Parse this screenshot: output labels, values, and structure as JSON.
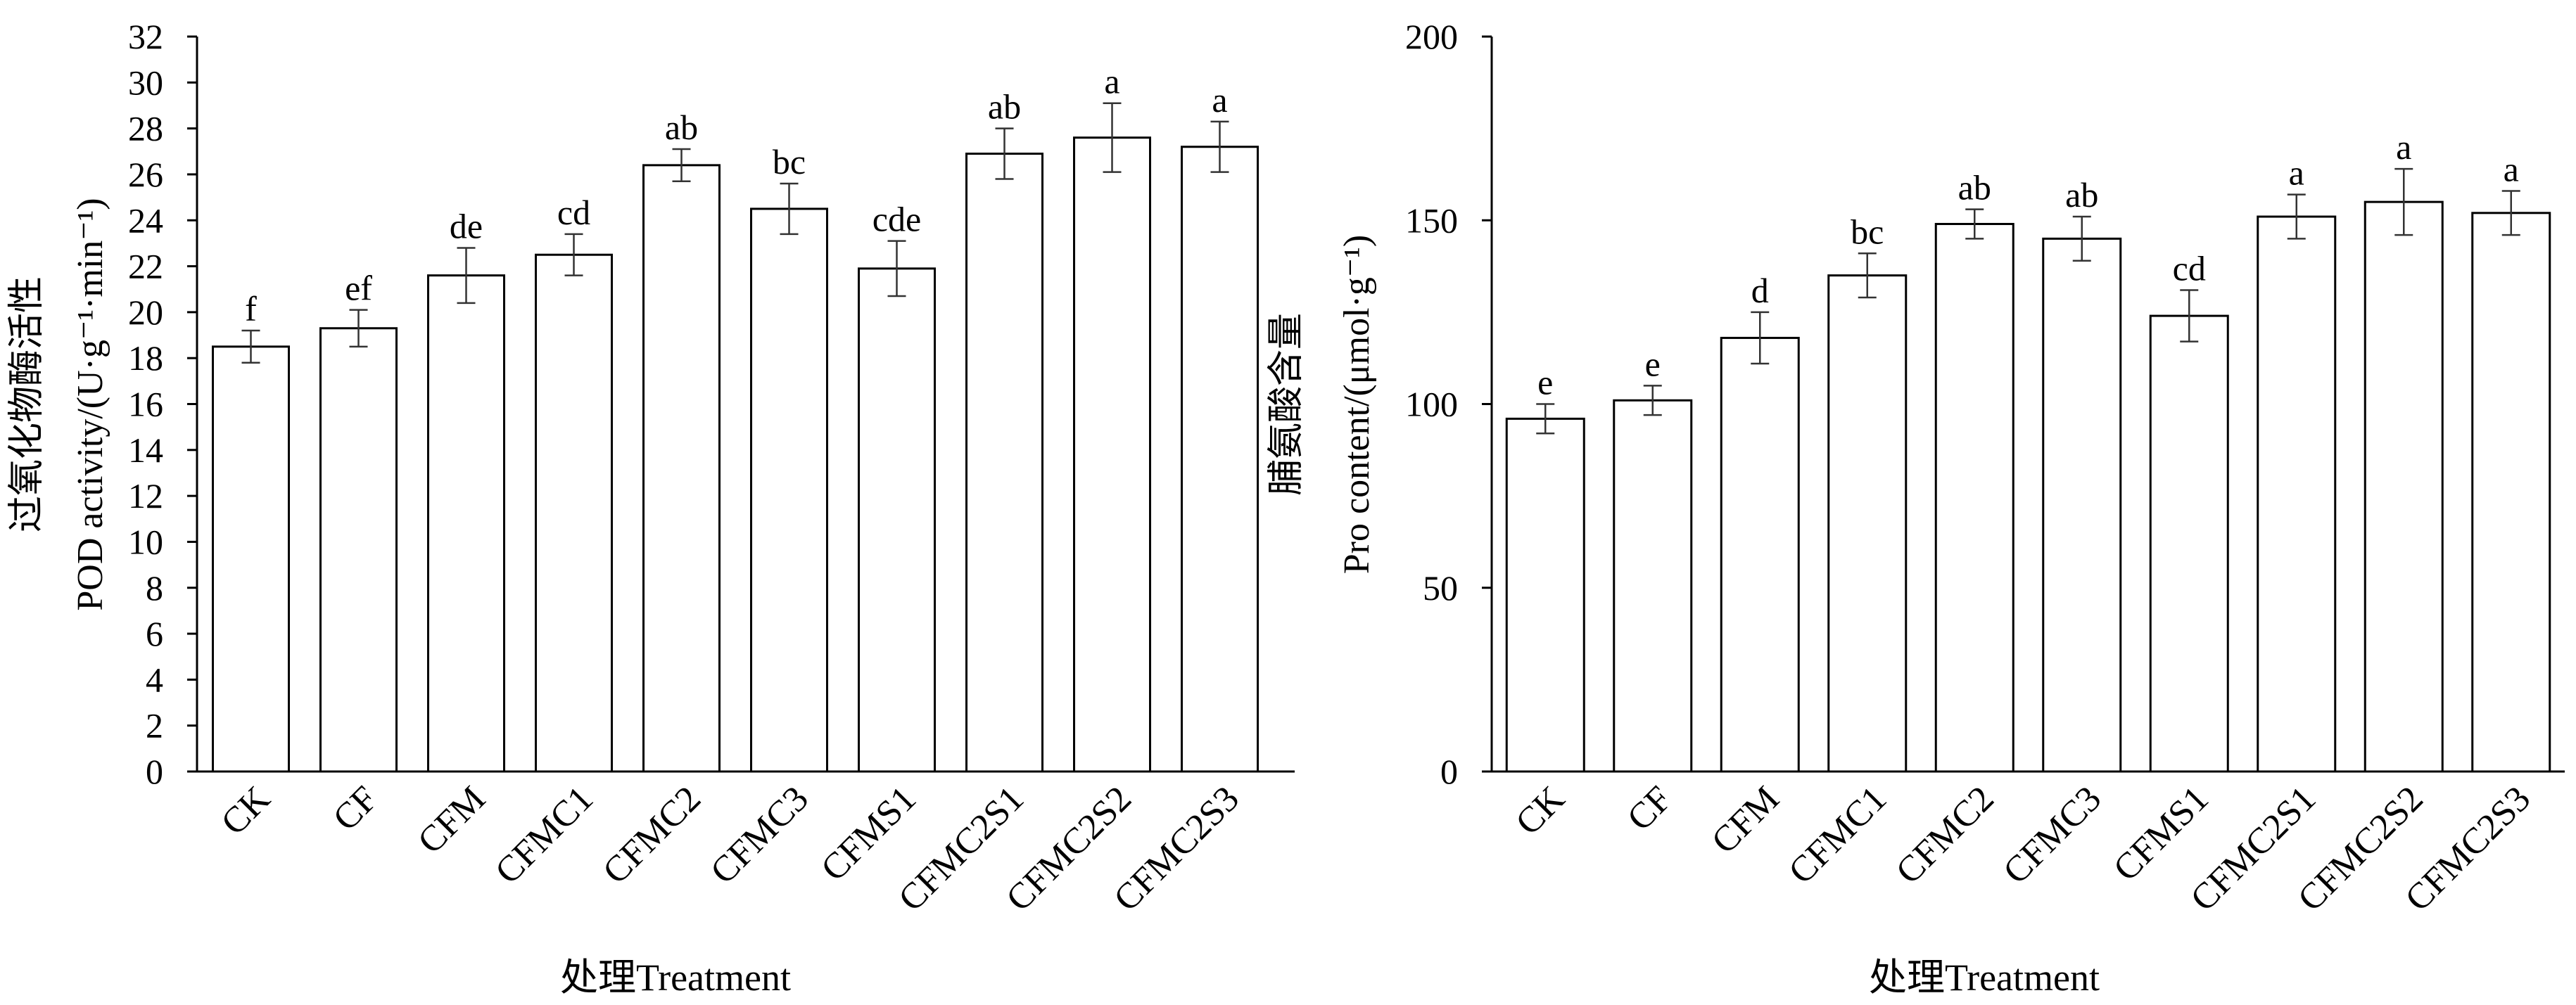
{
  "chart_data": [
    {
      "type": "bar",
      "categories": [
        "CK",
        "CF",
        "CFM",
        "CFMC1",
        "CFMC2",
        "CFMC3",
        "CFMS1",
        "CFMC2S1",
        "CFMC2S2",
        "CFMC2S3"
      ],
      "values": [
        18.5,
        19.3,
        21.6,
        22.5,
        26.4,
        24.5,
        21.9,
        26.9,
        27.6,
        27.2
      ],
      "errors": [
        0.7,
        0.8,
        1.2,
        0.9,
        0.7,
        1.1,
        1.2,
        1.1,
        1.5,
        1.1
      ],
      "significance": [
        "f",
        "ef",
        "de",
        "cd",
        "ab",
        "bc",
        "cde",
        "ab",
        "a",
        "a"
      ],
      "ylabel_cn": "过氧化物酶活性",
      "ylabel_en": "POD activity/(U·g⁻¹·min⁻¹)",
      "xlabel": "处理Treatment",
      "ylim": [
        0,
        32
      ],
      "yticks": [
        0,
        2,
        4,
        6,
        8,
        10,
        12,
        14,
        16,
        18,
        20,
        22,
        24,
        26,
        28,
        30,
        32
      ],
      "grid": false
    },
    {
      "type": "bar",
      "categories": [
        "CK",
        "CF",
        "CFM",
        "CFMC1",
        "CFMC2",
        "CFMC3",
        "CFMS1",
        "CFMC2S1",
        "CFMC2S2",
        "CFMC2S3"
      ],
      "values": [
        96,
        101,
        118,
        135,
        149,
        145,
        124,
        151,
        155,
        152
      ],
      "errors": [
        4,
        4,
        7,
        6,
        4,
        6,
        7,
        6,
        9,
        6
      ],
      "significance": [
        "e",
        "e",
        "d",
        "bc",
        "ab",
        "ab",
        "cd",
        "a",
        "a",
        "a"
      ],
      "ylabel_cn": "脯氨酸含量",
      "ylabel_en": "Pro content/(μmol·g⁻¹)",
      "xlabel": "处理Treatment",
      "ylim": [
        0,
        200
      ],
      "yticks": [
        0,
        50,
        100,
        150,
        200
      ],
      "grid": false
    }
  ]
}
